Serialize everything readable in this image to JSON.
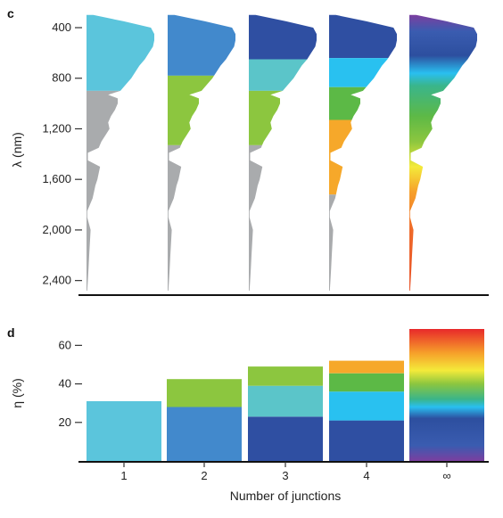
{
  "chart_data": [
    {
      "panel_label": "c",
      "type": "area",
      "ylabel": "λ (nm)",
      "yticks": [
        400,
        800,
        1200,
        1600,
        2000,
        2400
      ],
      "ytick_labels": [
        "400",
        "800",
        "1,200",
        "1,600",
        "2,000",
        "2,400"
      ],
      "ylim": [
        280,
        2480
      ],
      "spectrum": {
        "lambda": [
          300,
          350,
          400,
          450,
          500,
          550,
          600,
          650,
          700,
          750,
          800,
          850,
          900,
          930,
          960,
          1000,
          1050,
          1100,
          1150,
          1200,
          1250,
          1300,
          1350,
          1390,
          1450,
          1500,
          1550,
          1600,
          1650,
          1700,
          1750,
          1800,
          1850,
          1900,
          2000,
          2100,
          2200,
          2300,
          2400,
          2480
        ],
        "intensity": [
          0.1,
          0.55,
          0.95,
          1.0,
          1.0,
          0.98,
          0.92,
          0.86,
          0.78,
          0.72,
          0.66,
          0.58,
          0.5,
          0.32,
          0.46,
          0.46,
          0.42,
          0.36,
          0.32,
          0.34,
          0.28,
          0.22,
          0.18,
          0.02,
          0.02,
          0.2,
          0.18,
          0.16,
          0.13,
          0.11,
          0.09,
          0.05,
          0.01,
          0.01,
          0.06,
          0.05,
          0.04,
          0.03,
          0.02,
          0.01
        ]
      },
      "columns": [
        {
          "junctions": "1",
          "bands": [
            {
              "from": 300,
              "to": 900,
              "color": "#5bc5dc"
            },
            {
              "from": 900,
              "to": 2480,
              "color": "#a9abad"
            }
          ]
        },
        {
          "junctions": "2",
          "bands": [
            {
              "from": 300,
              "to": 780,
              "color": "#4289cc"
            },
            {
              "from": 780,
              "to": 1330,
              "color": "#8cc63f"
            },
            {
              "from": 1330,
              "to": 2480,
              "color": "#a9abad"
            }
          ]
        },
        {
          "junctions": "3",
          "bands": [
            {
              "from": 300,
              "to": 650,
              "color": "#2f4fa2"
            },
            {
              "from": 650,
              "to": 900,
              "color": "#5bc5c9"
            },
            {
              "from": 900,
              "to": 1330,
              "color": "#8cc63f"
            },
            {
              "from": 1330,
              "to": 2480,
              "color": "#a9abad"
            }
          ]
        },
        {
          "junctions": "4",
          "bands": [
            {
              "from": 300,
              "to": 640,
              "color": "#2f4fa2"
            },
            {
              "from": 640,
              "to": 870,
              "color": "#29c1f0"
            },
            {
              "from": 870,
              "to": 1130,
              "color": "#5cb946"
            },
            {
              "from": 1130,
              "to": 1720,
              "color": "#f6a82a"
            },
            {
              "from": 1720,
              "to": 2480,
              "color": "#a9abad"
            }
          ]
        },
        {
          "junctions": "∞",
          "gradient": [
            {
              "lambda": 300,
              "color": "#7b3fa0"
            },
            {
              "lambda": 430,
              "color": "#3a5cb0"
            },
            {
              "lambda": 620,
              "color": "#2d4f9f"
            },
            {
              "lambda": 760,
              "color": "#29bff0"
            },
            {
              "lambda": 860,
              "color": "#3ab58a"
            },
            {
              "lambda": 1100,
              "color": "#5db946"
            },
            {
              "lambda": 1300,
              "color": "#8cc63f"
            },
            {
              "lambda": 1500,
              "color": "#f4ea3a"
            },
            {
              "lambda": 1700,
              "color": "#f6a02a"
            },
            {
              "lambda": 2000,
              "color": "#ef6a2a"
            },
            {
              "lambda": 2480,
              "color": "#e8532a"
            }
          ]
        }
      ]
    },
    {
      "panel_label": "d",
      "type": "bar",
      "xlabel": "Number of junctions",
      "ylabel": "η (%)",
      "categories": [
        "1",
        "2",
        "3",
        "4",
        "∞"
      ],
      "yticks": [
        20,
        40,
        60
      ],
      "ylim": [
        0,
        72
      ],
      "stacks": [
        [
          {
            "value": 31,
            "color": "#5bc5dc"
          }
        ],
        [
          {
            "value": 28,
            "color": "#4289cc"
          },
          {
            "value": 14.5,
            "color": "#8cc63f"
          }
        ],
        [
          {
            "value": 23,
            "color": "#2f4fa2"
          },
          {
            "value": 16,
            "color": "#5bc5c9"
          },
          {
            "value": 10,
            "color": "#8cc63f"
          }
        ],
        [
          {
            "value": 21,
            "color": "#2f4fa2"
          },
          {
            "value": 15,
            "color": "#29c1f0"
          },
          {
            "value": 9.5,
            "color": "#5cb946"
          },
          {
            "value": 6.5,
            "color": "#f6a82a"
          }
        ]
      ],
      "infinite_total": 68.5,
      "infinite_gradient": [
        {
          "value": 0,
          "color": "#7b3fa0"
        },
        {
          "value": 8,
          "color": "#3a5cb0"
        },
        {
          "value": 22,
          "color": "#2d4f9f"
        },
        {
          "value": 28,
          "color": "#29bff0"
        },
        {
          "value": 32,
          "color": "#3ab58a"
        },
        {
          "value": 40,
          "color": "#8cc63f"
        },
        {
          "value": 47,
          "color": "#f4ea3a"
        },
        {
          "value": 56,
          "color": "#f6a02a"
        },
        {
          "value": 68.5,
          "color": "#e8282a"
        }
      ]
    }
  ]
}
